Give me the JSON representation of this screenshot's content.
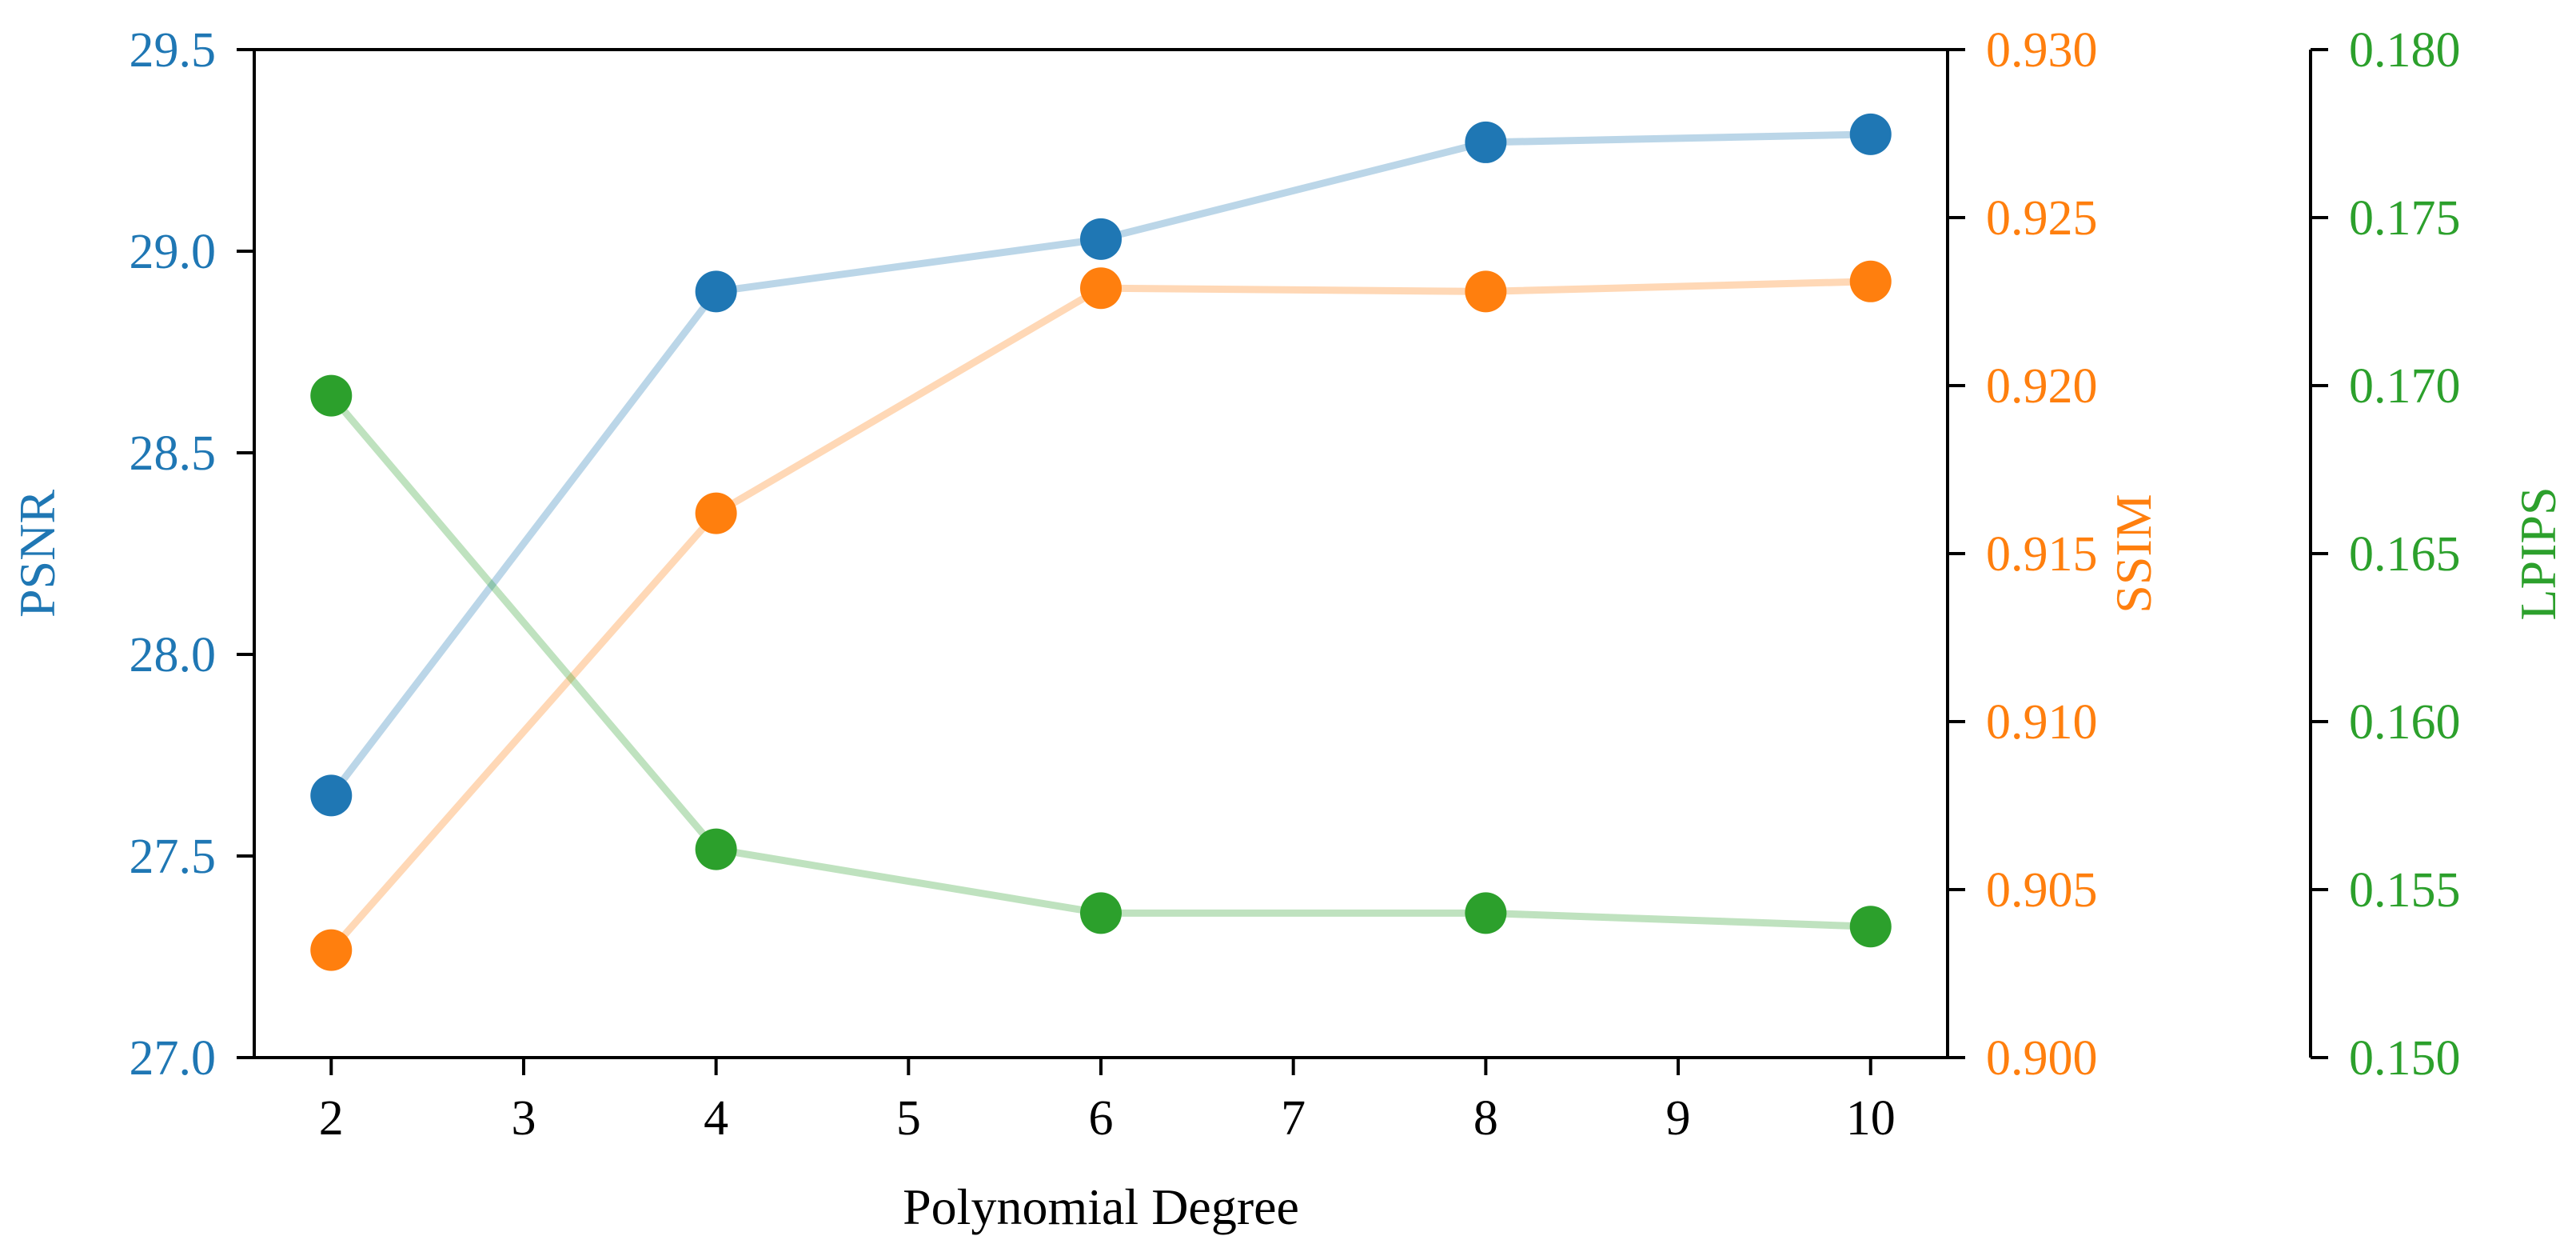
{
  "chart_data": {
    "type": "line",
    "xlabel": "Polynomial Degree",
    "x": [
      2,
      4,
      6,
      8,
      10
    ],
    "x_ticks": [
      "2",
      "3",
      "4",
      "5",
      "6",
      "7",
      "8",
      "9",
      "10"
    ],
    "xlim": [
      1.6,
      10.4
    ],
    "series": [
      {
        "name": "PSNR",
        "axis": "left",
        "color": "#1f77b4",
        "ylabel": "PSNR",
        "ylim": [
          27.0,
          29.5
        ],
        "ticks": [
          "27.0",
          "27.5",
          "28.0",
          "28.5",
          "29.0",
          "29.5"
        ],
        "values": [
          27.65,
          28.9,
          29.03,
          29.27,
          29.29
        ]
      },
      {
        "name": "SSIM",
        "axis": "right",
        "color": "#ff7f0e",
        "ylabel": "SSIM",
        "ylim": [
          0.9,
          0.93
        ],
        "ticks": [
          "0.900",
          "0.905",
          "0.910",
          "0.915",
          "0.920",
          "0.925",
          "0.930"
        ],
        "values": [
          0.9032,
          0.9162,
          0.9229,
          0.9228,
          0.9231
        ]
      },
      {
        "name": "LPIPS",
        "axis": "right-outer",
        "color": "#2ca02c",
        "ylabel": "LPIPS",
        "ylim": [
          0.15,
          0.18
        ],
        "ticks": [
          "0.150",
          "0.155",
          "0.160",
          "0.165",
          "0.170",
          "0.175",
          "0.180"
        ],
        "values": [
          0.1697,
          0.1562,
          0.1543,
          0.1543,
          0.1539
        ]
      }
    ]
  }
}
